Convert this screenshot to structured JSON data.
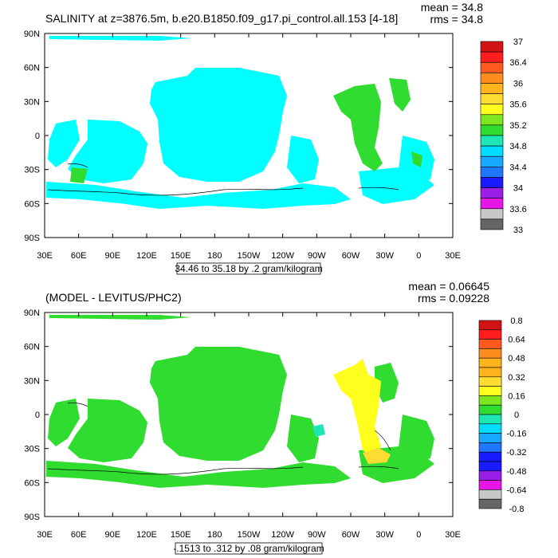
{
  "palette": [
    "#666666",
    "#c8c8c8",
    "#e617e6",
    "#9b1ee6",
    "#1a1aff",
    "#1e78ff",
    "#19a8ff",
    "#00dcff",
    "#1ee6b4",
    "#2fdc2f",
    "#7de61e",
    "#ffff1e",
    "#ffdc32",
    "#ffb41e",
    "#ff8c1e",
    "#ff5a1e",
    "#ff1e1e",
    "#d21414"
  ],
  "charts": [
    {
      "type": "map",
      "title": "SALINITY at z=3876.5m, b.e20.B1850.f09_g17.pi_control.all.153 [4-18]",
      "mean_label": "mean = 34.8",
      "rms_label": "rms = 34.8",
      "contour_info": "34.46 to 35.18 by .2 gram/kilogram",
      "y_ticks": [
        "90N",
        "60N",
        "30N",
        "0",
        "30S",
        "60S",
        "90S"
      ],
      "x_ticks": [
        "30E",
        "60E",
        "90E",
        "120E",
        "150E",
        "180",
        "150W",
        "120W",
        "90W",
        "60W",
        "30W",
        "0",
        "30E"
      ],
      "colorbar_labels": [
        "37",
        "36.4",
        "36",
        "35.6",
        "35.2",
        "34.8",
        "34.4",
        "34",
        "33.6",
        "33"
      ],
      "colorbar_label_rows": [
        0,
        2,
        4,
        6,
        8,
        10,
        12,
        14,
        16,
        18
      ],
      "fill_colors": {
        "main": "#00ffff",
        "warm": "#2fdc2f"
      }
    },
    {
      "type": "map",
      "title": "(MODEL - LEVITUS/PHC2)",
      "mean_label": "mean = 0.06645",
      "rms_label": "rms = 0.09228",
      "contour_info": "-.1513 to .312 by .08 gram/kilogram",
      "y_ticks": [
        "90N",
        "60N",
        "30N",
        "0",
        "30S",
        "60S",
        "90S"
      ],
      "x_ticks": [
        "30E",
        "60E",
        "90E",
        "120E",
        "150E",
        "180",
        "150W",
        "120W",
        "90W",
        "60W",
        "30W",
        "0",
        "30E"
      ],
      "colorbar_labels": [
        "0.8",
        "0.64",
        "0.48",
        "0.32",
        "0.16",
        "0",
        "-0.16",
        "-0.32",
        "-0.48",
        "-0.64",
        "-0.8"
      ],
      "colorbar_label_rows": [
        0,
        2,
        4,
        6,
        8,
        10,
        12,
        14,
        16,
        18,
        20
      ],
      "fill_colors": {
        "main": "#2fdc2f",
        "warm": "#ffff1e",
        "hot": "#ffdc32",
        "cool": "#1ee6b4"
      }
    }
  ]
}
